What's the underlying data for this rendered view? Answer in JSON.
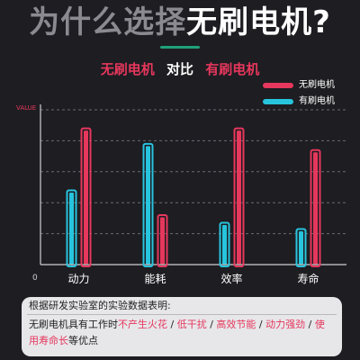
{
  "headline": {
    "part1": "为什么选择",
    "part2": "无刷电机?"
  },
  "compare": {
    "left": "无刷电机",
    "mid": "对比",
    "right": "有刷电机"
  },
  "legend": [
    {
      "label": "无刷电机",
      "color": "#e6375c"
    },
    {
      "label": "有刷电机",
      "color": "#27c4dd"
    }
  ],
  "chart_data": {
    "type": "bar",
    "ylabel": "VALUE",
    "ylim": [
      0,
      10
    ],
    "y_tick_labels": [
      "0"
    ],
    "grid": "dashed horizontal",
    "legend_position": "top-right",
    "categories": [
      "动力",
      "能耗",
      "效率",
      "寿命"
    ],
    "series": [
      {
        "name": "有刷电机",
        "color": "#27c4dd",
        "values": [
          4.8,
          7.8,
          2.7,
          2.3
        ]
      },
      {
        "name": "无刷电机",
        "color": "#e6375c",
        "values": [
          8.8,
          3.2,
          8.8,
          7.4
        ]
      }
    ]
  },
  "info": {
    "title": "根据研发实验室的实验数据表明:",
    "prefix": "无刷电机具有工作时",
    "h1": "不产生火花",
    "s1": " / ",
    "h2": "低干扰",
    "s2": " / ",
    "h3": "高效节能",
    "s3": " / ",
    "h4": "动力强劲",
    "s4": " / ",
    "h5": "使用寿命长",
    "suffix": "等优点"
  }
}
